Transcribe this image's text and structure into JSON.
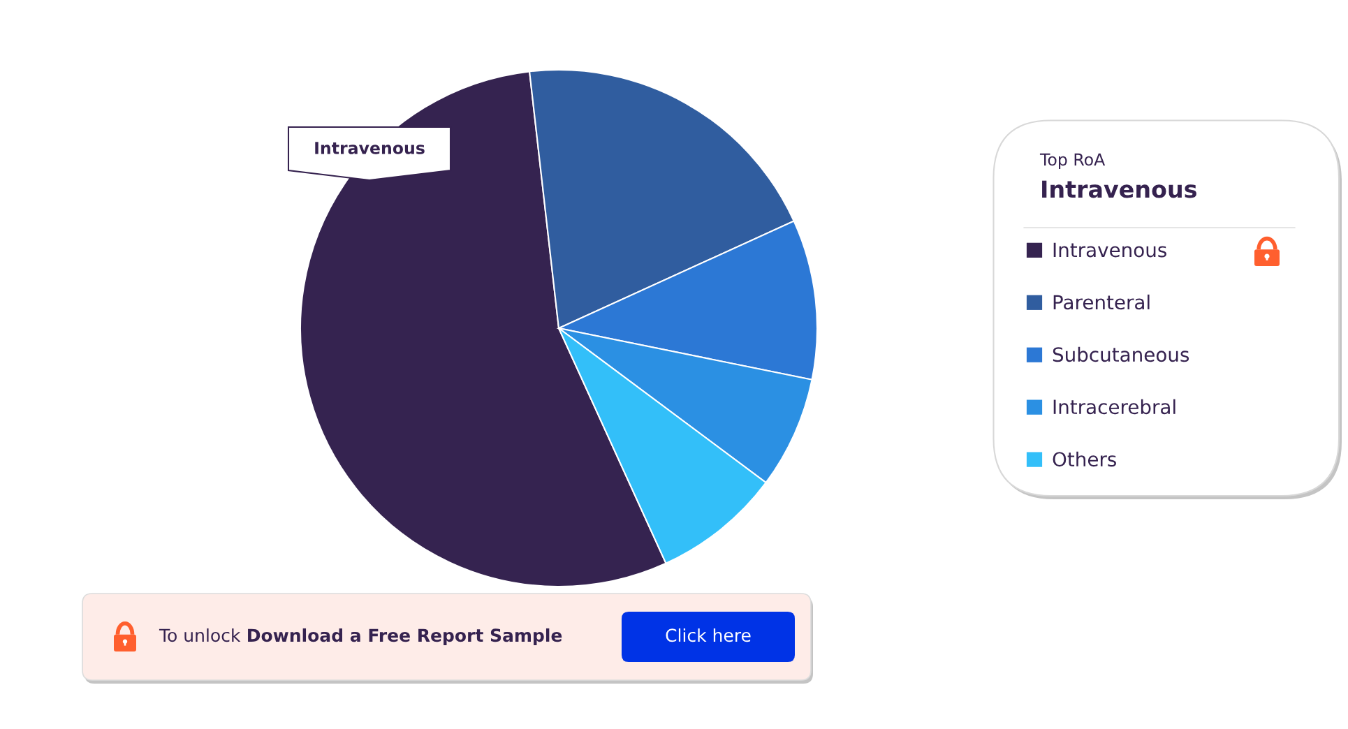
{
  "chart_data": {
    "type": "pie",
    "categories": [
      "Intravenous",
      "Parenteral",
      "Subcutaneous",
      "Intracerebral",
      "Others"
    ],
    "values": [
      55,
      20,
      10,
      7,
      8
    ],
    "colors": [
      "#352350",
      "#305d9f",
      "#2c78d5",
      "#2b90e3",
      "#33bff9"
    ],
    "legend": "right",
    "legend_title": "Top RoA",
    "annotations": [
      "Intravenous",
      "Intravenous",
      "To unlock",
      "Download a Free Report Sample",
      "Click here"
    ]
  }
}
